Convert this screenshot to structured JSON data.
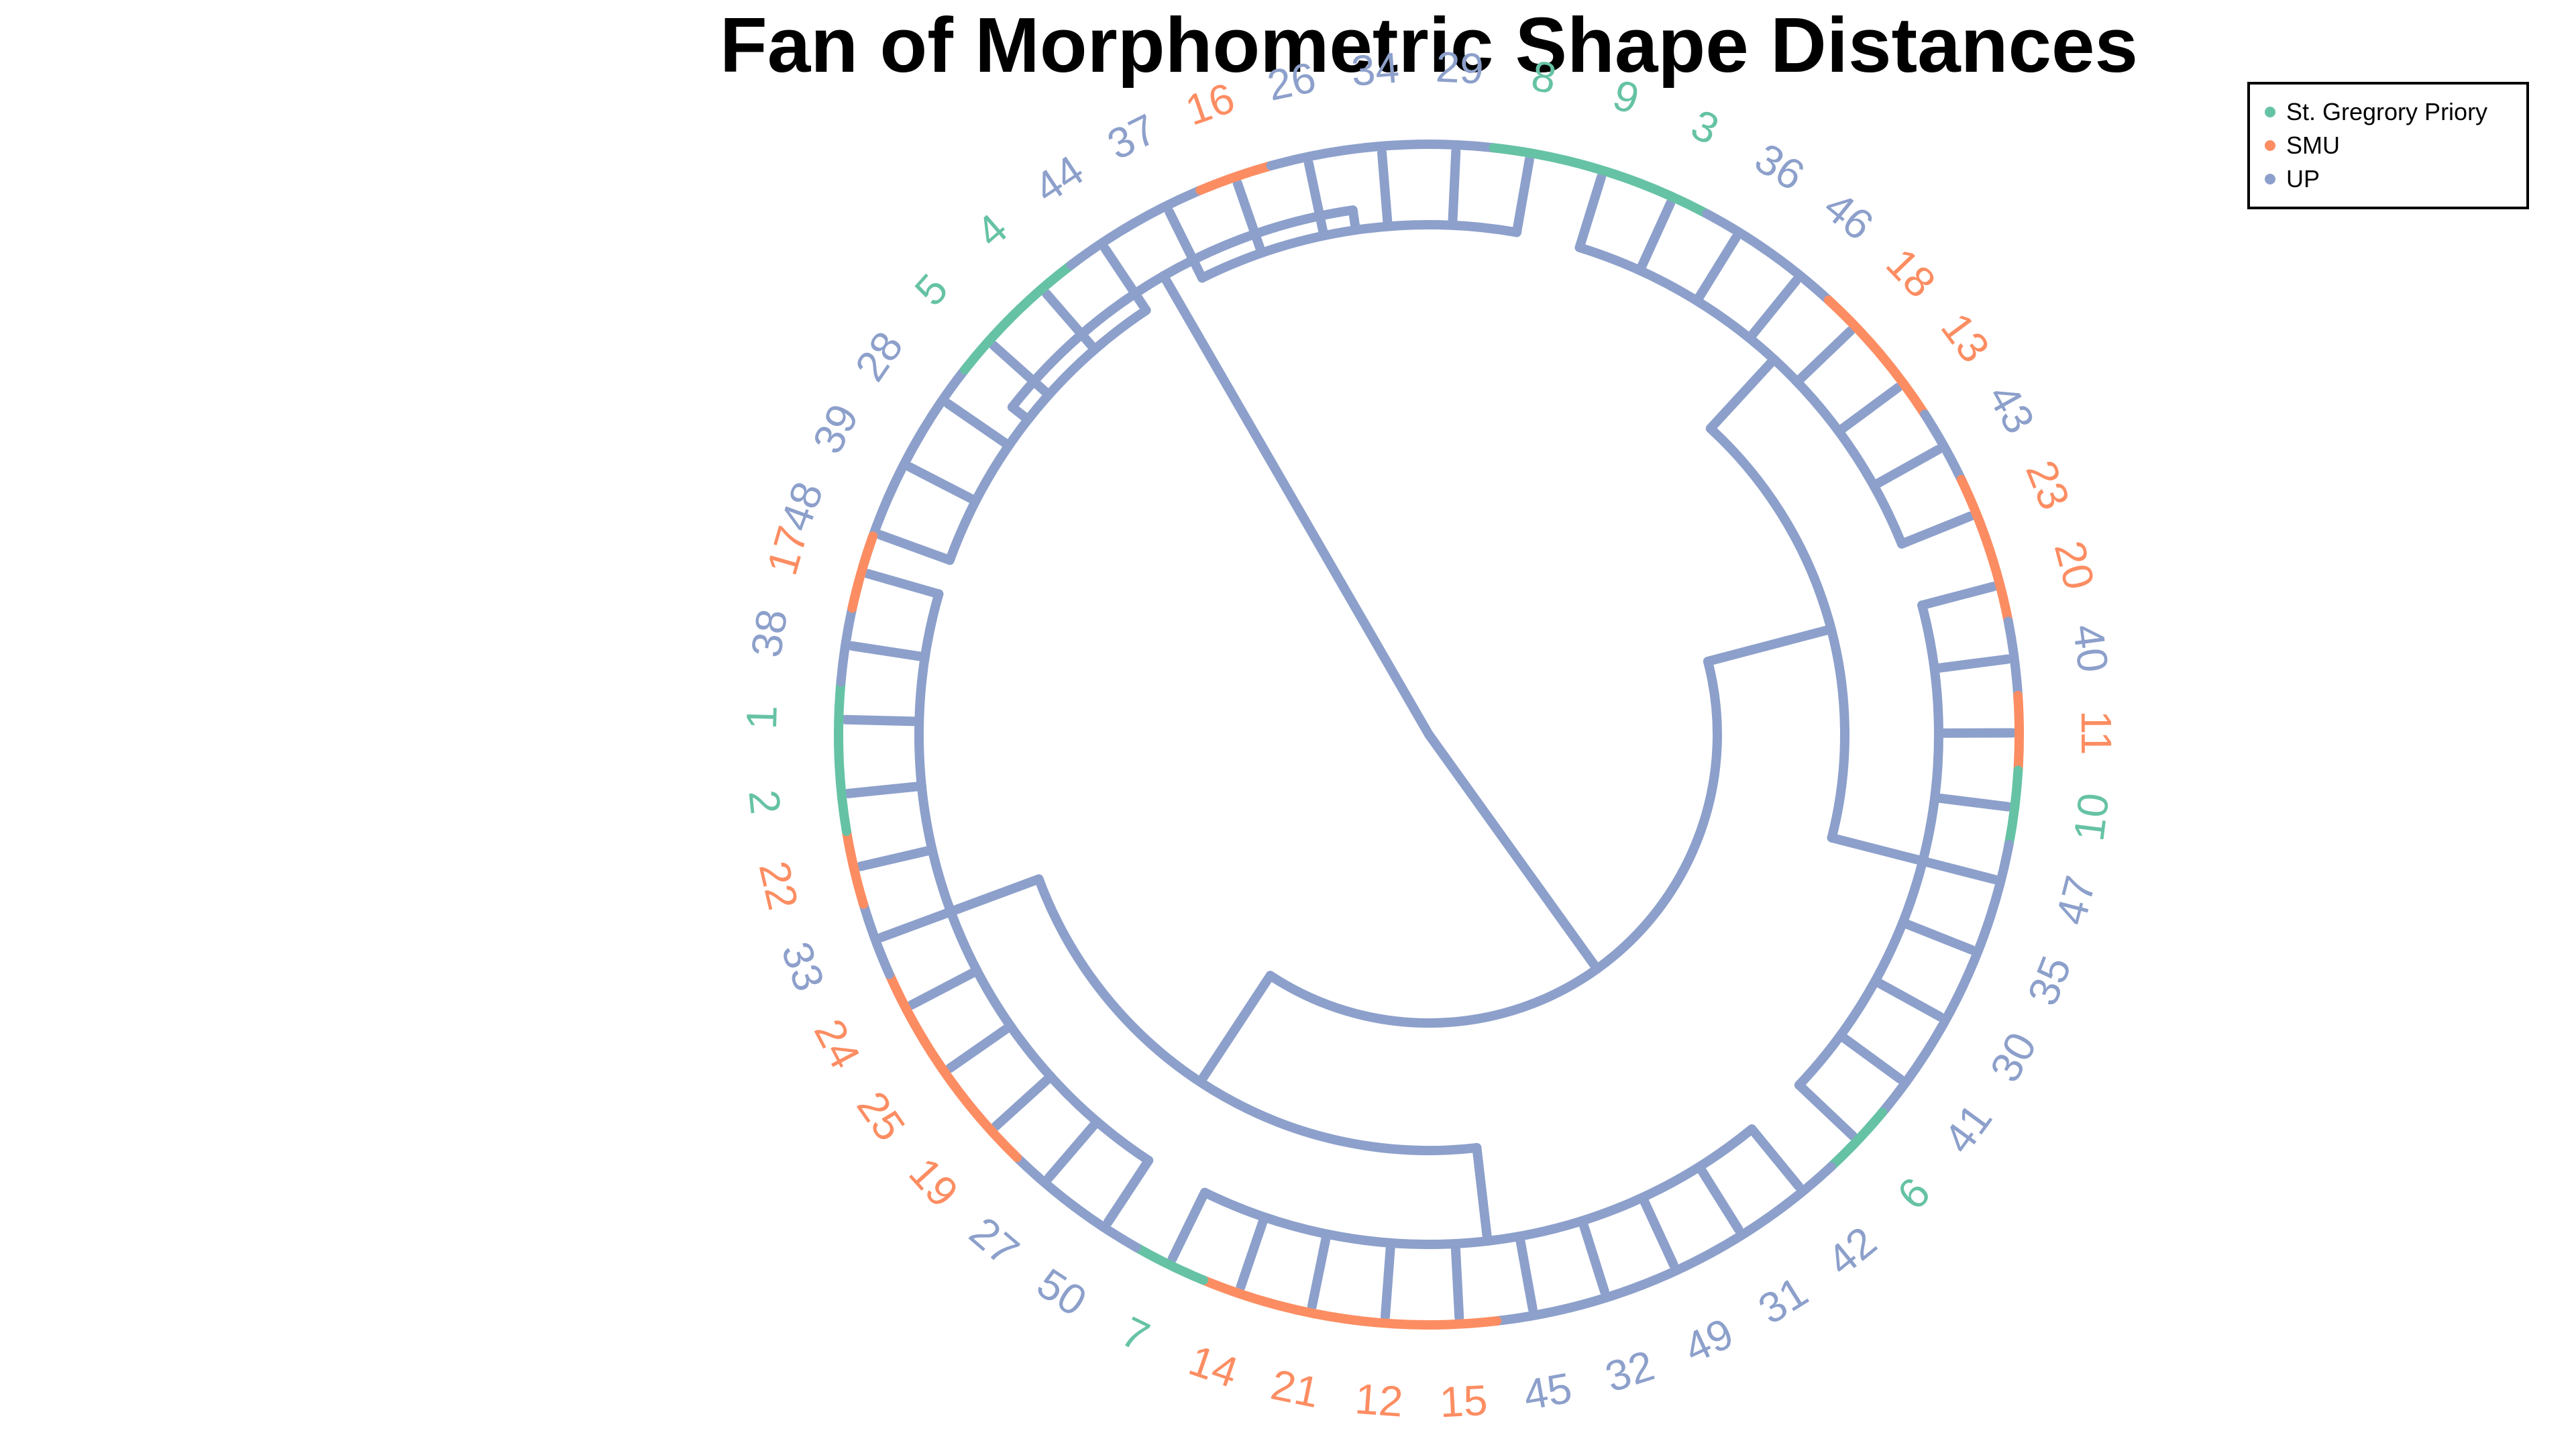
{
  "chart_data": {
    "type": "dendrogram",
    "layout": "fan",
    "title": "Fan of Morphometric Shape Distances",
    "legend": {
      "placement": "top-right",
      "entries": [
        {
          "name": "St. Gregrory Priory",
          "color": "#66c2a5"
        },
        {
          "name": "SMU",
          "color": "#fc8d62"
        },
        {
          "name": "UP",
          "color": "#8da0cb"
        }
      ]
    },
    "tip_labels": [
      {
        "label": "48",
        "group": "UP"
      },
      {
        "label": "39",
        "group": "UP"
      },
      {
        "label": "28",
        "group": "UP"
      },
      {
        "label": "5",
        "group": "St. Gregrory Priory"
      },
      {
        "label": "4",
        "group": "St. Gregrory Priory"
      },
      {
        "label": "44",
        "group": "UP"
      },
      {
        "label": "37",
        "group": "UP"
      },
      {
        "label": "16",
        "group": "SMU"
      },
      {
        "label": "26",
        "group": "UP"
      },
      {
        "label": "34",
        "group": "UP"
      },
      {
        "label": "29",
        "group": "UP"
      },
      {
        "label": "8",
        "group": "St. Gregrory Priory"
      },
      {
        "label": "9",
        "group": "St. Gregrory Priory"
      },
      {
        "label": "3",
        "group": "St. Gregrory Priory"
      },
      {
        "label": "36",
        "group": "UP"
      },
      {
        "label": "46",
        "group": "UP"
      },
      {
        "label": "18",
        "group": "SMU"
      },
      {
        "label": "13",
        "group": "SMU"
      },
      {
        "label": "43",
        "group": "UP"
      },
      {
        "label": "23",
        "group": "SMU"
      },
      {
        "label": "20",
        "group": "SMU"
      },
      {
        "label": "40",
        "group": "UP"
      },
      {
        "label": "11",
        "group": "SMU"
      },
      {
        "label": "10",
        "group": "St. Gregrory Priory"
      },
      {
        "label": "47",
        "group": "UP"
      },
      {
        "label": "35",
        "group": "UP"
      },
      {
        "label": "30",
        "group": "UP"
      },
      {
        "label": "41",
        "group": "UP"
      },
      {
        "label": "6",
        "group": "St. Gregrory Priory"
      },
      {
        "label": "42",
        "group": "UP"
      },
      {
        "label": "31",
        "group": "UP"
      },
      {
        "label": "49",
        "group": "UP"
      },
      {
        "label": "32",
        "group": "UP"
      },
      {
        "label": "45",
        "group": "UP"
      },
      {
        "label": "15",
        "group": "SMU"
      },
      {
        "label": "12",
        "group": "SMU"
      },
      {
        "label": "21",
        "group": "SMU"
      },
      {
        "label": "14",
        "group": "SMU"
      },
      {
        "label": "7",
        "group": "St. Gregrory Priory"
      },
      {
        "label": "50",
        "group": "UP"
      },
      {
        "label": "27",
        "group": "UP"
      },
      {
        "label": "19",
        "group": "SMU"
      },
      {
        "label": "25",
        "group": "SMU"
      },
      {
        "label": "24",
        "group": "SMU"
      },
      {
        "label": "33",
        "group": "UP"
      },
      {
        "label": "22",
        "group": "SMU"
      },
      {
        "label": "2",
        "group": "St. Gregrory Priory"
      },
      {
        "label": "1",
        "group": "St. Gregrory Priory"
      },
      {
        "label": "38",
        "group": "UP"
      },
      {
        "label": "17",
        "group": "SMU"
      }
    ],
    "clades": [
      {
        "name": "clade-a",
        "members": [
          "48",
          "39",
          "28",
          "5",
          "4",
          "44",
          "37",
          "16",
          "26",
          "34",
          "29",
          "8"
        ]
      },
      {
        "name": "clade-b",
        "members": [
          "9",
          "3",
          "36",
          "46",
          "18",
          "13",
          "43",
          "23",
          "20",
          "40",
          "11",
          "10",
          "47",
          "35",
          "30",
          "41",
          "6"
        ]
      },
      {
        "name": "clade-c",
        "members": [
          "42",
          "31",
          "49",
          "32",
          "45",
          "15",
          "12",
          "21",
          "14",
          "7",
          "50",
          "27",
          "19",
          "25",
          "24",
          "33",
          "22",
          "2",
          "1",
          "38",
          "17"
        ]
      }
    ]
  }
}
